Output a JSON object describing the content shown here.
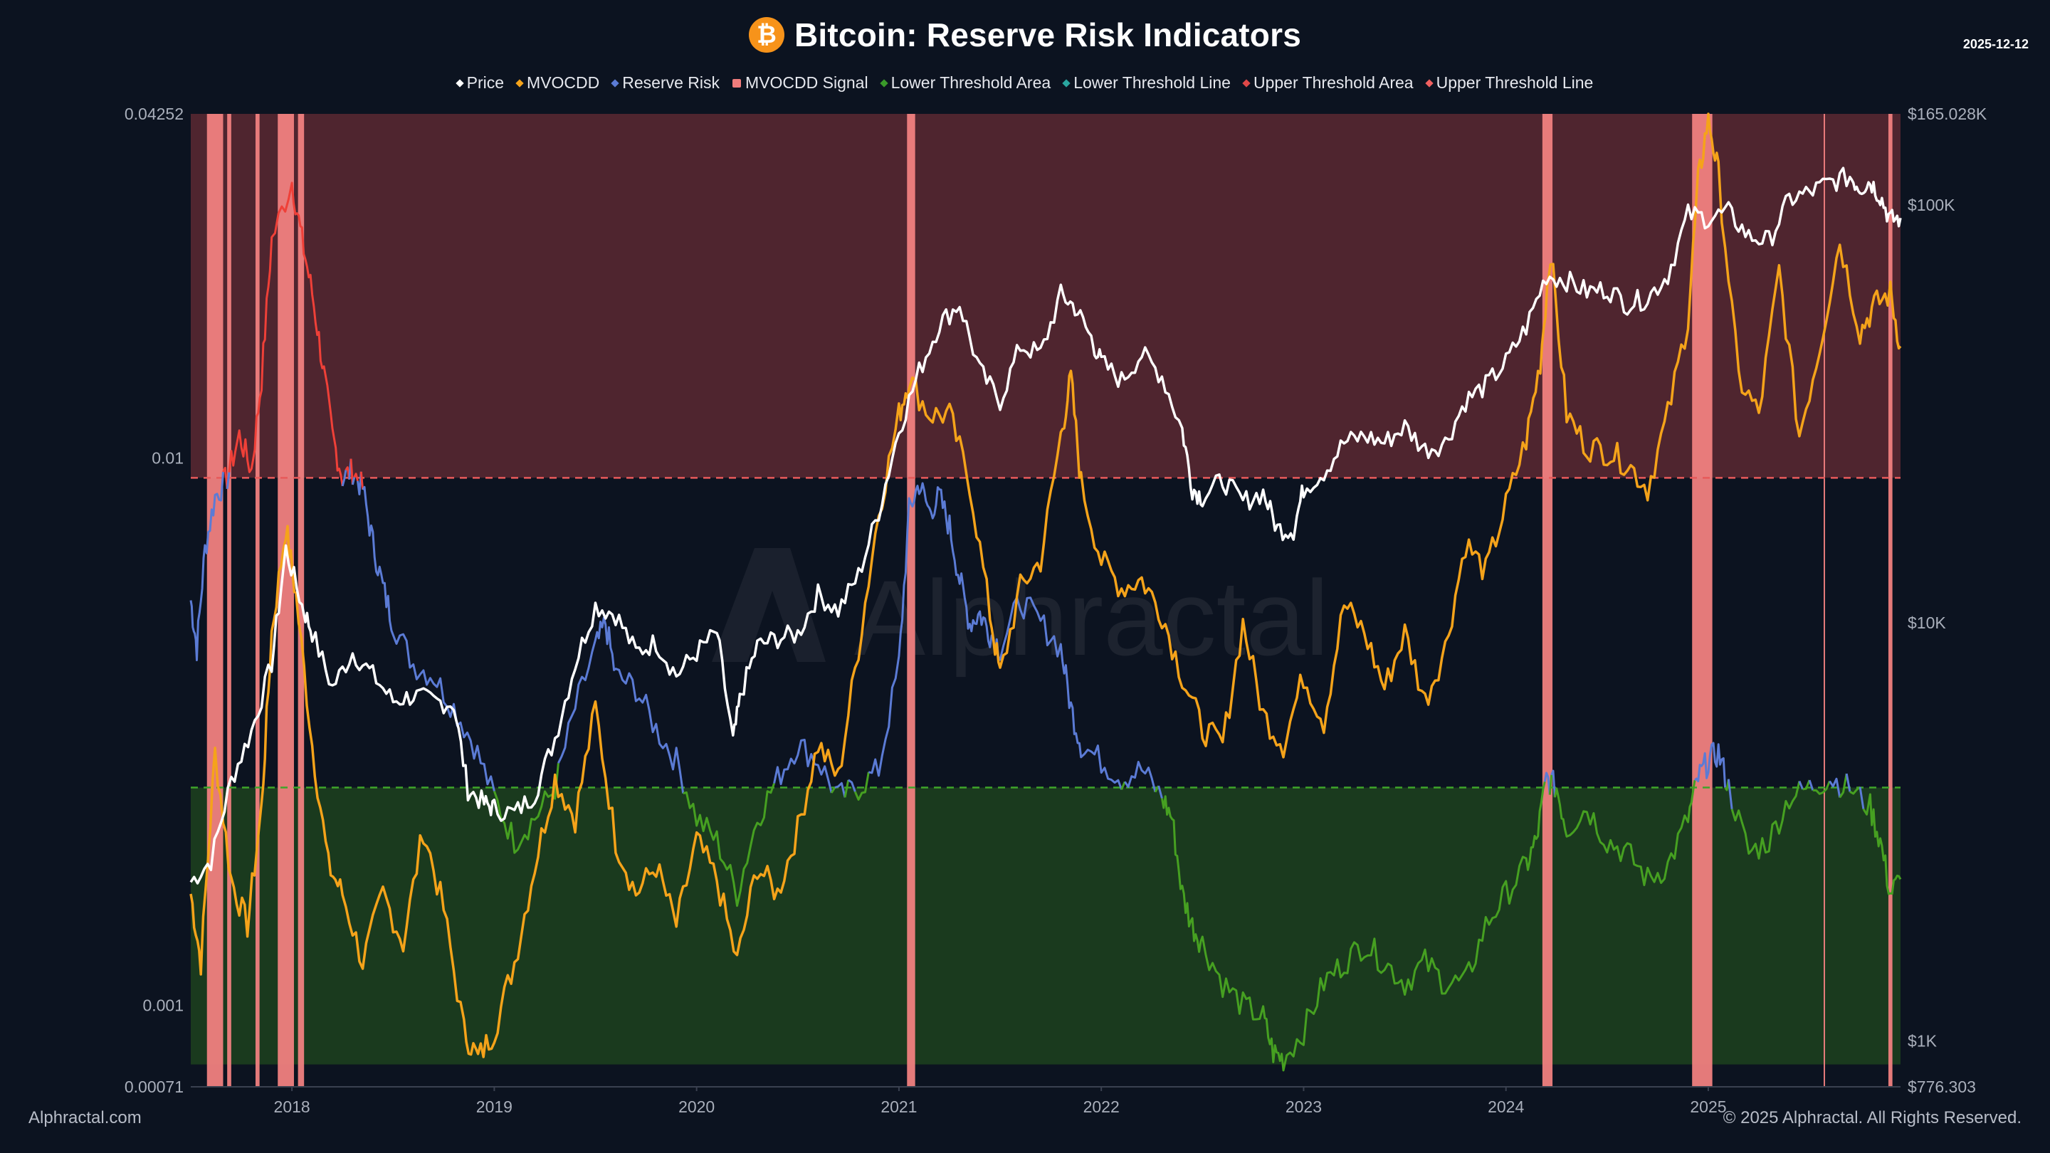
{
  "header": {
    "title": "Bitcoin: Reserve Risk Indicators",
    "icon": "bitcoin-icon",
    "icon_glyph": "₿",
    "date": "2025-12-12"
  },
  "legend": [
    {
      "label": "Price",
      "color": "#ffffff",
      "shape": "diamond"
    },
    {
      "label": "MVOCDD",
      "color": "#f5a31a",
      "shape": "diamond"
    },
    {
      "label": "Reserve Risk",
      "color": "#5b7bd5",
      "shape": "diamond"
    },
    {
      "label": "MVOCDD Signal",
      "color": "#f07c7c",
      "shape": "square"
    },
    {
      "label": "Lower Threshold Area",
      "color": "#3a9a2a",
      "shape": "diamond"
    },
    {
      "label": "Lower Threshold Line",
      "color": "#2aa6a0",
      "shape": "diamond"
    },
    {
      "label": "Upper Threshold Area",
      "color": "#e04848",
      "shape": "diamond"
    },
    {
      "label": "Upper Threshold Line",
      "color": "#f06060",
      "shape": "diamond"
    }
  ],
  "footer": {
    "left": "Alphractal.com",
    "right": "© 2025 Alphractal. All Rights Reserved."
  },
  "watermark": "Alphractal",
  "chart_data": {
    "type": "line",
    "title": "Bitcoin: Reserve Risk Indicators",
    "x_range": [
      2017.5,
      2025.95
    ],
    "x_ticks": [
      "2018",
      "2019",
      "2020",
      "2021",
      "2022",
      "2023",
      "2024",
      "2025"
    ],
    "x_tick_values": [
      2018,
      2019,
      2020,
      2021,
      2022,
      2023,
      2024,
      2025
    ],
    "left_axis": {
      "scale": "log",
      "range": [
        0.00071,
        0.04252
      ],
      "tick_labels": [
        "0.04252",
        "0.01",
        "0.001",
        "0.00071"
      ],
      "tick_values": [
        0.04252,
        0.01,
        0.001,
        0.00071
      ]
    },
    "right_axis": {
      "scale": "log",
      "range": [
        776.303,
        165028
      ],
      "tick_labels": [
        "$165.028K",
        "$100K",
        "$10K",
        "$1K",
        "$776.303"
      ],
      "tick_values": [
        165028,
        100000,
        10000,
        1000,
        776.303
      ]
    },
    "upper_threshold": 0.0092,
    "lower_threshold": 0.0025,
    "area_bottom": 0.00078,
    "colors": {
      "price": "#ffffff",
      "mvocdd": "#f5a31a",
      "reserve_risk_mid": "#5b7bd5",
      "reserve_risk_high": "#ef4038",
      "reserve_risk_low": "#46a021",
      "signal": "#f08080",
      "upper_area": "#4f252f",
      "lower_area": "#1a3a1e",
      "upper_line": "#e85a5a",
      "lower_line": "#3fa52a"
    },
    "series": [
      {
        "name": "Price",
        "axis": "right",
        "x": [
          2017.5,
          2017.6,
          2017.7,
          2017.8,
          2017.9,
          2017.97,
          2018.05,
          2018.1,
          2018.2,
          2018.3,
          2018.4,
          2018.5,
          2018.6,
          2018.7,
          2018.8,
          2018.87,
          2018.95,
          2019.0,
          2019.1,
          2019.2,
          2019.3,
          2019.4,
          2019.5,
          2019.6,
          2019.7,
          2019.8,
          2019.9,
          2020.0,
          2020.1,
          2020.18,
          2020.22,
          2020.3,
          2020.4,
          2020.5,
          2020.6,
          2020.7,
          2020.8,
          2020.9,
          2021.0,
          2021.1,
          2021.2,
          2021.3,
          2021.4,
          2021.5,
          2021.6,
          2021.7,
          2021.8,
          2021.87,
          2021.95,
          2022.0,
          2022.1,
          2022.2,
          2022.3,
          2022.4,
          2022.45,
          2022.5,
          2022.6,
          2022.7,
          2022.8,
          2022.87,
          2022.95,
          2023.0,
          2023.1,
          2023.2,
          2023.3,
          2023.4,
          2023.5,
          2023.6,
          2023.7,
          2023.8,
          2023.9,
          2024.0,
          2024.1,
          2024.2,
          2024.3,
          2024.4,
          2024.5,
          2024.6,
          2024.7,
          2024.8,
          2024.9,
          2025.0,
          2025.1,
          2025.2,
          2025.3,
          2025.4,
          2025.5,
          2025.6,
          2025.7,
          2025.75,
          2025.8,
          2025.85,
          2025.9,
          2025.95
        ],
        "values": [
          2400,
          2700,
          4200,
          5500,
          8000,
          15000,
          11000,
          9500,
          7000,
          8500,
          7500,
          6500,
          6700,
          6500,
          6400,
          4000,
          3700,
          3600,
          3500,
          3900,
          5300,
          8000,
          11000,
          10500,
          8500,
          9000,
          7500,
          8500,
          9500,
          5200,
          6800,
          8800,
          9200,
          9400,
          11700,
          10700,
          13000,
          18500,
          29000,
          40000,
          52000,
          58000,
          40000,
          34000,
          46000,
          44000,
          61000,
          57000,
          48000,
          42000,
          38000,
          44000,
          39000,
          29000,
          21000,
          20000,
          22000,
          19500,
          20500,
          16800,
          16700,
          21000,
          23000,
          27000,
          28000,
          27000,
          29500,
          26000,
          27000,
          34000,
          37000,
          42000,
          51000,
          68000,
          66000,
          62000,
          63000,
          58000,
          60000,
          68000,
          95000,
          93000,
          96000,
          84000,
          82000,
          103000,
          107000,
          113000,
          117000,
          110000,
          114000,
          105000,
          92000,
          93000
        ]
      },
      {
        "name": "MVOCDD",
        "axis": "left",
        "x": [
          2017.5,
          2017.55,
          2017.62,
          2017.7,
          2017.78,
          2017.85,
          2017.9,
          2017.97,
          2018.02,
          2018.1,
          2018.18,
          2018.25,
          2018.35,
          2018.45,
          2018.55,
          2018.65,
          2018.75,
          2018.85,
          2018.92,
          2019.0,
          2019.1,
          2019.2,
          2019.3,
          2019.4,
          2019.5,
          2019.6,
          2019.7,
          2019.8,
          2019.9,
          2020.0,
          2020.1,
          2020.2,
          2020.3,
          2020.4,
          2020.5,
          2020.6,
          2020.7,
          2020.8,
          2020.9,
          2021.0,
          2021.05,
          2021.15,
          2021.25,
          2021.35,
          2021.45,
          2021.5,
          2021.6,
          2021.7,
          2021.8,
          2021.85,
          2021.9,
          2022.0,
          2022.1,
          2022.2,
          2022.3,
          2022.4,
          2022.5,
          2022.6,
          2022.7,
          2022.8,
          2022.9,
          2023.0,
          2023.1,
          2023.2,
          2023.3,
          2023.4,
          2023.5,
          2023.6,
          2023.7,
          2023.8,
          2023.9,
          2024.0,
          2024.1,
          2024.17,
          2024.22,
          2024.3,
          2024.4,
          2024.5,
          2024.6,
          2024.7,
          2024.8,
          2024.9,
          2024.95,
          2025.0,
          2025.05,
          2025.15,
          2025.25,
          2025.35,
          2025.45,
          2025.55,
          2025.65,
          2025.75,
          2025.82,
          2025.9,
          2025.95
        ],
        "values": [
          0.0016,
          0.0012,
          0.0029,
          0.0017,
          0.0014,
          0.0023,
          0.0048,
          0.0075,
          0.0056,
          0.003,
          0.0018,
          0.0016,
          0.0012,
          0.0016,
          0.0013,
          0.0021,
          0.0015,
          0.0009,
          0.0008,
          0.0009,
          0.0012,
          0.0018,
          0.0026,
          0.0022,
          0.0035,
          0.002,
          0.0016,
          0.0018,
          0.0014,
          0.002,
          0.0017,
          0.0012,
          0.0018,
          0.0016,
          0.0021,
          0.003,
          0.0026,
          0.0045,
          0.008,
          0.012,
          0.014,
          0.012,
          0.012,
          0.009,
          0.0052,
          0.004,
          0.0058,
          0.0065,
          0.011,
          0.014,
          0.009,
          0.0065,
          0.0058,
          0.006,
          0.0052,
          0.004,
          0.0032,
          0.003,
          0.005,
          0.0034,
          0.003,
          0.004,
          0.0033,
          0.0054,
          0.0048,
          0.0038,
          0.0048,
          0.0036,
          0.0045,
          0.007,
          0.0062,
          0.0082,
          0.0108,
          0.015,
          0.024,
          0.012,
          0.0105,
          0.0103,
          0.0098,
          0.0088,
          0.012,
          0.018,
          0.032,
          0.042,
          0.033,
          0.014,
          0.012,
          0.022,
          0.011,
          0.016,
          0.025,
          0.017,
          0.019,
          0.02,
          0.016
        ]
      },
      {
        "name": "Reserve Risk",
        "axis": "left",
        "x": [
          2017.5,
          2017.53,
          2017.57,
          2017.62,
          2017.68,
          2017.74,
          2017.8,
          2017.85,
          2017.9,
          2018.0,
          2018.05,
          2018.1,
          2018.15,
          2018.2,
          2018.25,
          2018.3,
          2018.35,
          2018.4,
          2018.45,
          2018.5,
          2018.6,
          2018.7,
          2018.8,
          2018.9,
          2019.0,
          2019.1,
          2019.2,
          2019.3,
          2019.4,
          2019.5,
          2019.55,
          2019.6,
          2019.7,
          2019.8,
          2019.9,
          2020.0,
          2020.1,
          2020.2,
          2020.3,
          2020.4,
          2020.5,
          2020.6,
          2020.7,
          2020.8,
          2020.9,
          2021.0,
          2021.05,
          2021.1,
          2021.15,
          2021.2,
          2021.25,
          2021.3,
          2021.35,
          2021.4,
          2021.45,
          2021.5,
          2021.6,
          2021.7,
          2021.8,
          2021.85,
          2021.9,
          2022.0,
          2022.1,
          2022.2,
          2022.3,
          2022.35,
          2022.4,
          2022.45,
          2022.5,
          2022.6,
          2022.7,
          2022.8,
          2022.85,
          2022.9,
          2023.0,
          2023.1,
          2023.2,
          2023.3,
          2023.4,
          2023.5,
          2023.6,
          2023.7,
          2023.8,
          2023.9,
          2024.0,
          2024.1,
          2024.15,
          2024.2,
          2024.25,
          2024.3,
          2024.4,
          2024.5,
          2024.6,
          2024.7,
          2024.8,
          2024.9,
          2024.95,
          2025.0,
          2025.05,
          2025.1,
          2025.2,
          2025.3,
          2025.4,
          2025.5,
          2025.6,
          2025.7,
          2025.8,
          2025.85,
          2025.9,
          2025.95
        ],
        "values": [
          0.0055,
          0.0045,
          0.0068,
          0.0085,
          0.0092,
          0.011,
          0.0095,
          0.014,
          0.025,
          0.032,
          0.025,
          0.02,
          0.015,
          0.011,
          0.0092,
          0.0095,
          0.0088,
          0.007,
          0.0058,
          0.005,
          0.0042,
          0.004,
          0.0035,
          0.003,
          0.0024,
          0.002,
          0.0022,
          0.0025,
          0.0035,
          0.0045,
          0.005,
          0.004,
          0.0038,
          0.0032,
          0.0028,
          0.0022,
          0.002,
          0.0016,
          0.0022,
          0.0026,
          0.003,
          0.0028,
          0.0024,
          0.0025,
          0.0027,
          0.0042,
          0.008,
          0.009,
          0.008,
          0.0085,
          0.0075,
          0.006,
          0.005,
          0.0052,
          0.0048,
          0.0045,
          0.0055,
          0.005,
          0.0045,
          0.0035,
          0.003,
          0.0028,
          0.0026,
          0.0027,
          0.0024,
          0.0022,
          0.0016,
          0.0014,
          0.0013,
          0.0011,
          0.001,
          0.00095,
          0.00082,
          0.0008,
          0.0009,
          0.0011,
          0.0012,
          0.0013,
          0.0012,
          0.0011,
          0.0012,
          0.0011,
          0.0011,
          0.0014,
          0.0016,
          0.0018,
          0.002,
          0.0026,
          0.0025,
          0.0021,
          0.0023,
          0.002,
          0.0019,
          0.0017,
          0.0018,
          0.0022,
          0.0026,
          0.0028,
          0.0029,
          0.0025,
          0.0019,
          0.002,
          0.0024,
          0.0025,
          0.0026,
          0.0025,
          0.0023,
          0.002,
          0.0016,
          0.0017
        ]
      }
    ],
    "signal_periods": [
      [
        2017.58,
        2017.66
      ],
      [
        2017.68,
        2017.7
      ],
      [
        2017.82,
        2017.84
      ],
      [
        2017.93,
        2018.01
      ],
      [
        2018.03,
        2018.06
      ],
      [
        2021.04,
        2021.08
      ],
      [
        2024.18,
        2024.23
      ],
      [
        2024.92,
        2025.02
      ],
      [
        2025.57,
        2025.575
      ],
      [
        2025.89,
        2025.91
      ]
    ]
  }
}
